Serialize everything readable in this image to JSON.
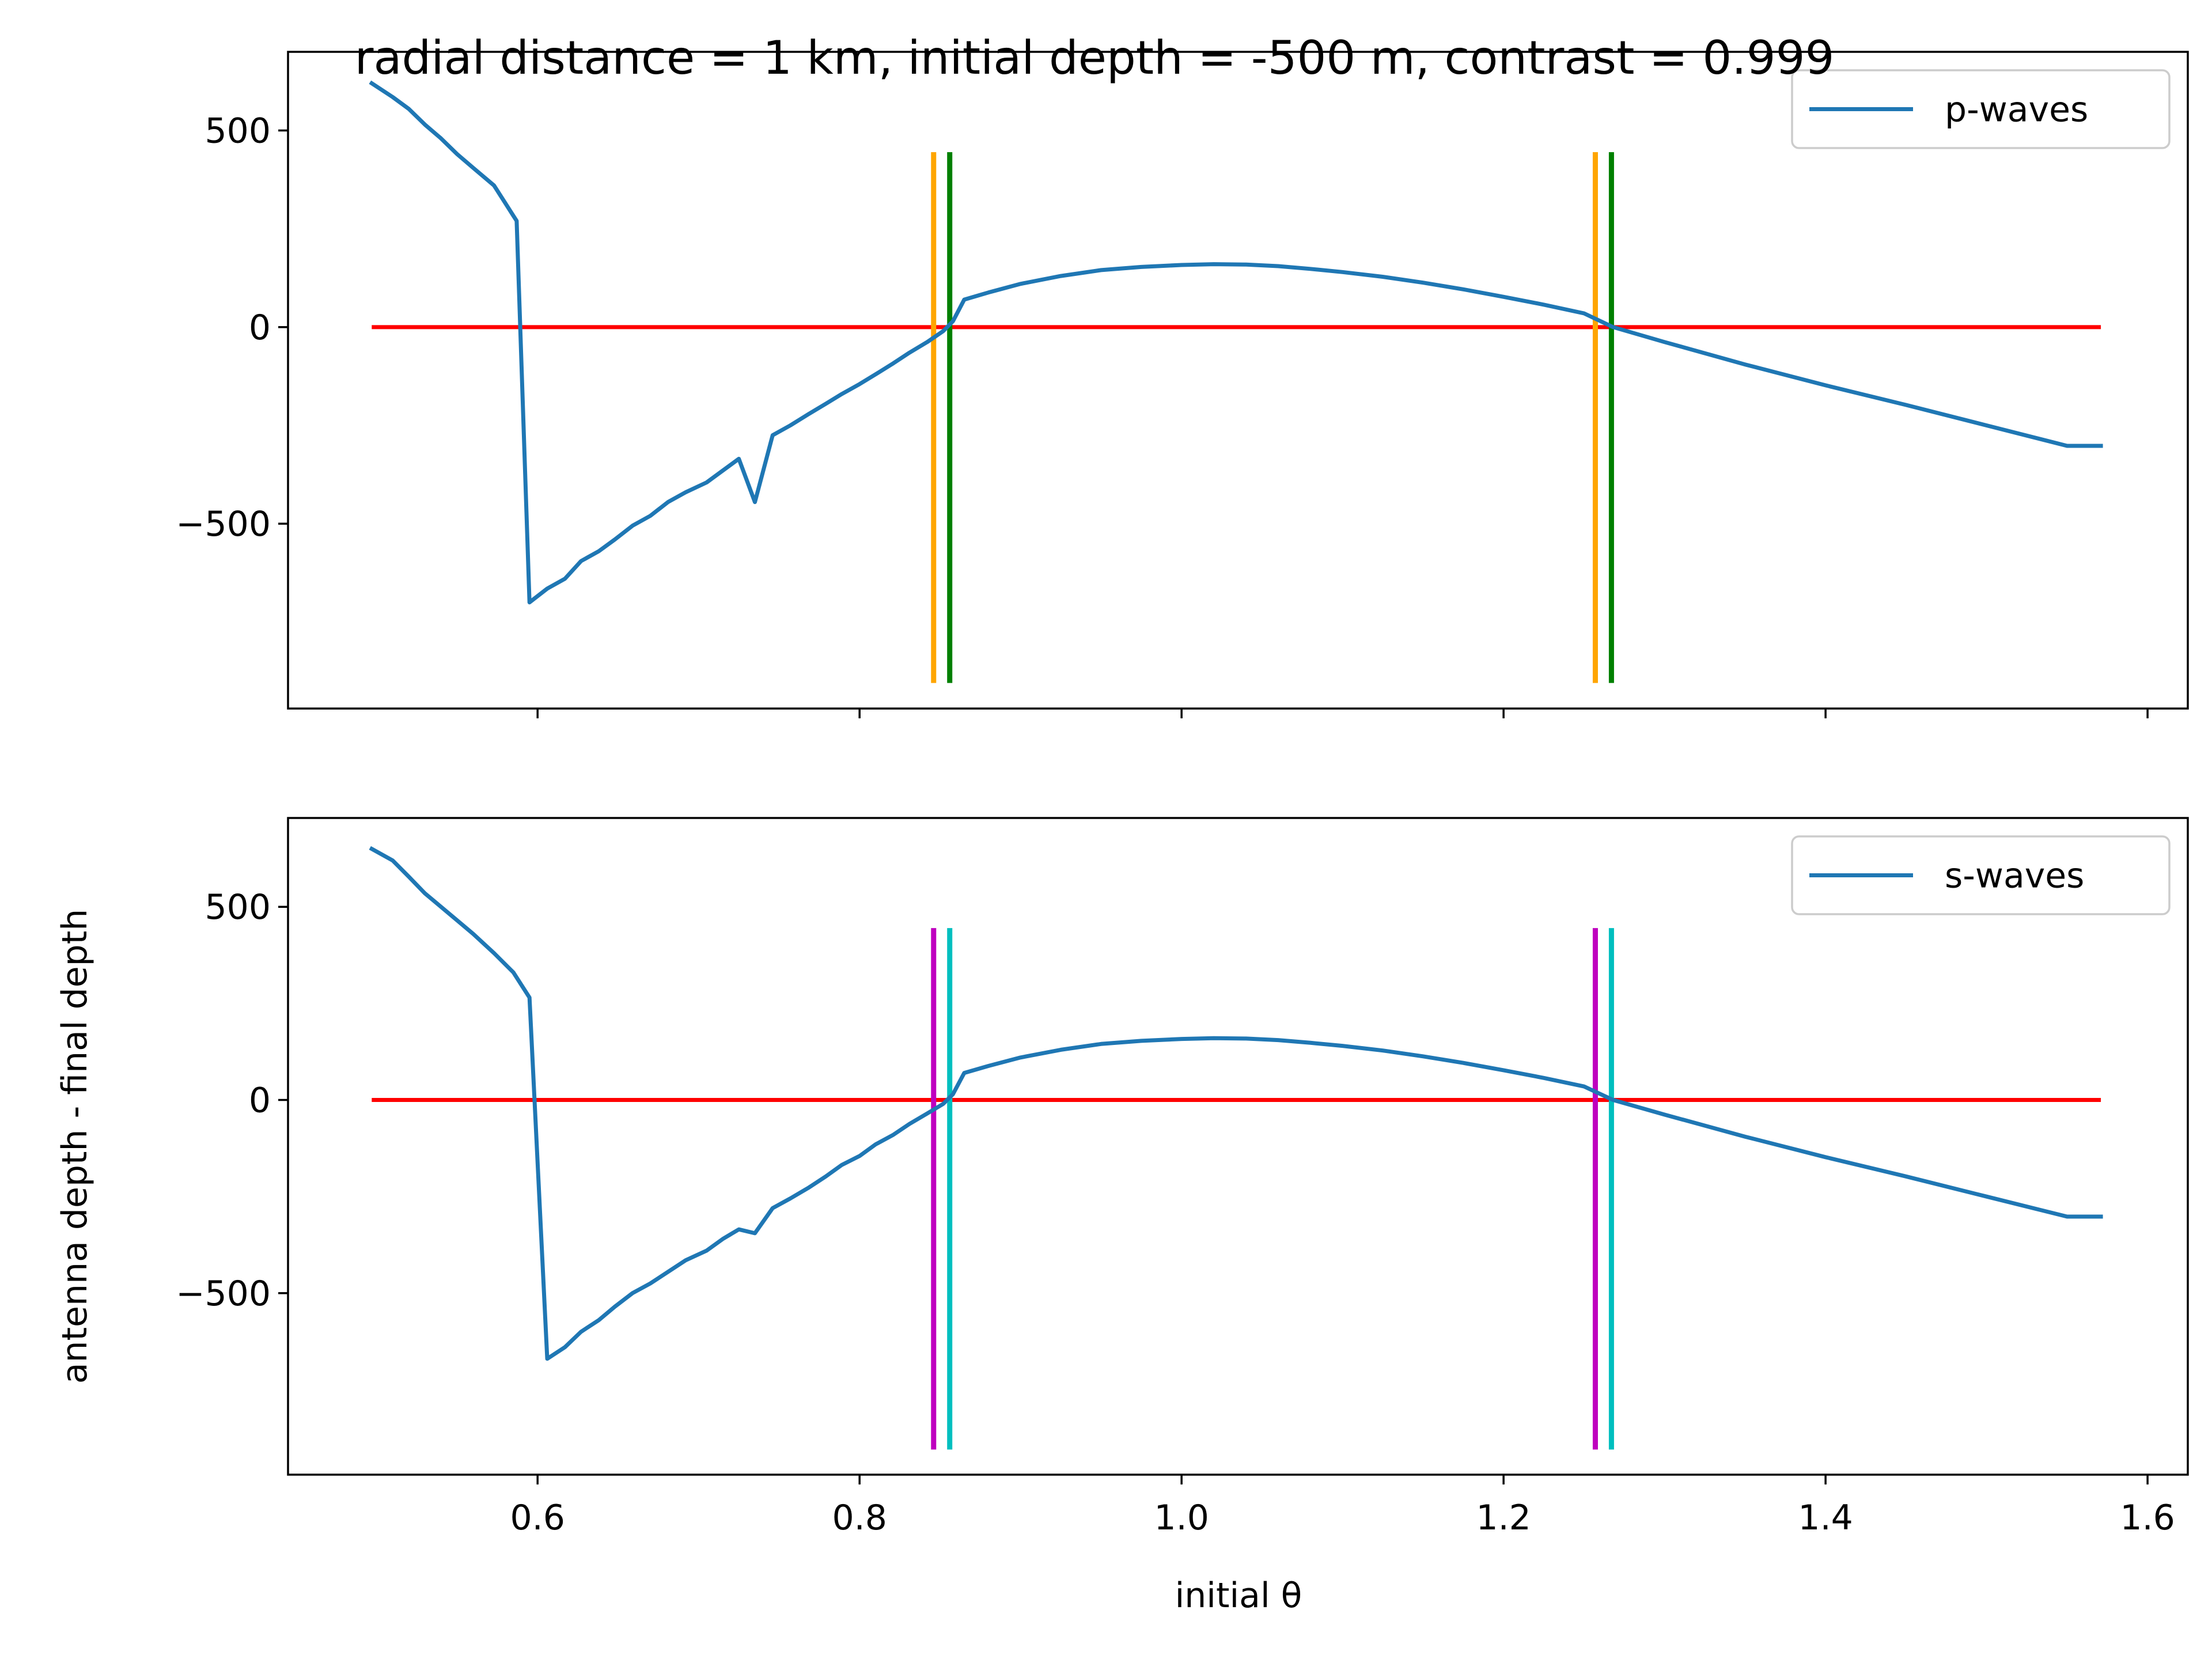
{
  "title": "radial distance = 1 km, initial depth = -500 m, contrast = 0.999",
  "colors": {
    "series": "#1f77b4",
    "zero_line": "#ff0000",
    "p_marker_a": "#ffa500",
    "p_marker_b": "#008000",
    "s_marker_a": "#bf00bf",
    "s_marker_b": "#00bfbf"
  },
  "chart_data": [
    {
      "type": "line",
      "panel": "top",
      "xlabel": "",
      "ylabel": "",
      "xlim": [
        0.445,
        1.625
      ],
      "ylim": [
        -970,
        700
      ],
      "xticks": [
        0.6,
        0.8,
        1.0,
        1.2,
        1.4,
        1.6
      ],
      "xtick_labels": [],
      "yticks": [
        500,
        0,
        -500
      ],
      "ytick_labels": [
        "500",
        "0",
        "−500"
      ],
      "legend": {
        "position": "top-right"
      },
      "series": [
        {
          "name": "p-waves",
          "x": [
            0.497,
            0.51,
            0.52,
            0.53,
            0.54,
            0.55,
            0.56,
            0.573,
            0.58,
            0.587,
            0.595,
            0.606,
            0.617,
            0.627,
            0.638,
            0.648,
            0.659,
            0.67,
            0.681,
            0.692,
            0.705,
            0.715,
            0.725,
            0.735,
            0.746,
            0.757,
            0.768,
            0.779,
            0.789,
            0.8,
            0.81,
            0.821,
            0.831,
            0.842,
            0.852,
            0.858,
            0.865,
            0.88,
            0.9,
            0.925,
            0.95,
            0.975,
            1.0,
            1.02,
            1.04,
            1.06,
            1.08,
            1.1,
            1.125,
            1.15,
            1.175,
            1.2,
            1.225,
            1.25,
            1.268,
            1.3,
            1.35,
            1.4,
            1.45,
            1.5,
            1.55,
            1.571
          ],
          "values": [
            620,
            585,
            555,
            515,
            480,
            440,
            405,
            360,
            315,
            270,
            -700,
            -665,
            -640,
            -595,
            -570,
            -540,
            -505,
            -480,
            -445,
            -420,
            -395,
            -365,
            -335,
            -445,
            -275,
            -250,
            -222,
            -195,
            -170,
            -145,
            -120,
            -92,
            -65,
            -38,
            -10,
            15,
            70,
            88,
            110,
            130,
            145,
            153,
            158,
            160,
            159,
            155,
            148,
            140,
            128,
            113,
            96,
            77,
            57,
            35,
            0,
            -38,
            -95,
            -148,
            -198,
            -250,
            -302,
            -302
          ]
        }
      ],
      "reference_lines": [
        {
          "kind": "horizontal",
          "y": 0,
          "x_range": [
            0.497,
            1.571
          ],
          "color_key": "zero_line"
        },
        {
          "kind": "vertical",
          "x": 0.846,
          "y_range": [
            -905,
            445
          ],
          "color_key": "p_marker_a"
        },
        {
          "kind": "vertical",
          "x": 0.856,
          "y_range": [
            -905,
            445
          ],
          "color_key": "p_marker_b"
        },
        {
          "kind": "vertical",
          "x": 1.257,
          "y_range": [
            -905,
            445
          ],
          "color_key": "p_marker_a"
        },
        {
          "kind": "vertical",
          "x": 1.267,
          "y_range": [
            -905,
            445
          ],
          "color_key": "p_marker_b"
        }
      ]
    },
    {
      "type": "line",
      "panel": "bottom",
      "xlabel": "initial θ",
      "ylabel": "antenna depth - final depth",
      "xlim": [
        0.445,
        1.625
      ],
      "ylim": [
        -970,
        730
      ],
      "xticks": [
        0.6,
        0.8,
        1.0,
        1.2,
        1.4,
        1.6
      ],
      "xtick_labels": [
        "0.6",
        "0.8",
        "1.0",
        "1.2",
        "1.4",
        "1.6"
      ],
      "yticks": [
        500,
        0,
        -500
      ],
      "ytick_labels": [
        "500",
        "0",
        "−500"
      ],
      "legend": {
        "position": "top-right"
      },
      "series": [
        {
          "name": "s-waves",
          "x": [
            0.497,
            0.51,
            0.52,
            0.53,
            0.54,
            0.55,
            0.56,
            0.573,
            0.585,
            0.595,
            0.606,
            0.617,
            0.627,
            0.638,
            0.648,
            0.659,
            0.67,
            0.681,
            0.692,
            0.705,
            0.715,
            0.725,
            0.735,
            0.746,
            0.757,
            0.768,
            0.779,
            0.789,
            0.8,
            0.81,
            0.821,
            0.831,
            0.842,
            0.852,
            0.858,
            0.865,
            0.88,
            0.9,
            0.925,
            0.95,
            0.975,
            1.0,
            1.02,
            1.04,
            1.06,
            1.08,
            1.1,
            1.125,
            1.15,
            1.175,
            1.2,
            1.225,
            1.25,
            1.268,
            1.3,
            1.35,
            1.4,
            1.45,
            1.5,
            1.55,
            1.571
          ],
          "values": [
            650,
            620,
            578,
            535,
            500,
            465,
            430,
            380,
            330,
            265,
            -670,
            -640,
            -600,
            -570,
            -535,
            -500,
            -475,
            -445,
            -415,
            -390,
            -360,
            -335,
            -345,
            -280,
            -255,
            -228,
            -198,
            -168,
            -145,
            -115,
            -90,
            -62,
            -35,
            -10,
            15,
            70,
            88,
            110,
            130,
            145,
            153,
            158,
            160,
            159,
            155,
            148,
            140,
            128,
            113,
            96,
            77,
            57,
            35,
            0,
            -38,
            -95,
            -148,
            -198,
            -250,
            -302,
            -302
          ]
        }
      ],
      "reference_lines": [
        {
          "kind": "horizontal",
          "y": 0,
          "x_range": [
            0.497,
            1.571
          ],
          "color_key": "zero_line"
        },
        {
          "kind": "vertical",
          "x": 0.846,
          "y_range": [
            -905,
            445
          ],
          "color_key": "s_marker_a"
        },
        {
          "kind": "vertical",
          "x": 0.856,
          "y_range": [
            -905,
            445
          ],
          "color_key": "s_marker_b"
        },
        {
          "kind": "vertical",
          "x": 1.257,
          "y_range": [
            -905,
            445
          ],
          "color_key": "s_marker_a"
        },
        {
          "kind": "vertical",
          "x": 1.267,
          "y_range": [
            -905,
            445
          ],
          "color_key": "s_marker_b"
        }
      ]
    }
  ]
}
